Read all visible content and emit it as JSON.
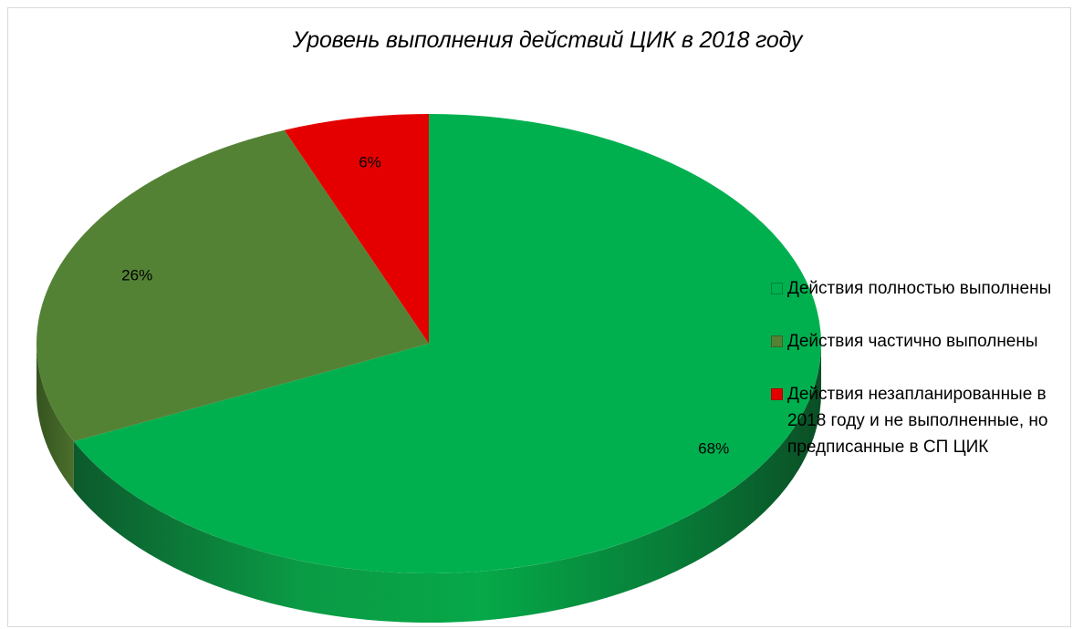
{
  "chart_data": {
    "type": "pie",
    "style": "3d",
    "title": "Уровень выполнения действий ЦИК в 2018 году",
    "categories": [
      "Действия полностью выполнены",
      "Действия частично выполнены",
      "Действия незапланированные в 2018 году и не выполненные, но предписанные в СП ЦИК"
    ],
    "values": [
      68,
      26,
      6
    ],
    "data_labels": [
      "68%",
      "26%",
      "6%"
    ],
    "colors": [
      "#00b04f",
      "#548235",
      "#e40000"
    ],
    "legend_position": "right"
  },
  "legend": {
    "items": [
      {
        "text": "Действия полностью выполнены",
        "color": "#00b04f"
      },
      {
        "text": "Действия частично выполнены",
        "color": "#548235"
      },
      {
        "text": "Действия незапланированные в 2018 году и не выполненные, но предписанные в СП ЦИК",
        "color": "#e40000"
      }
    ]
  }
}
